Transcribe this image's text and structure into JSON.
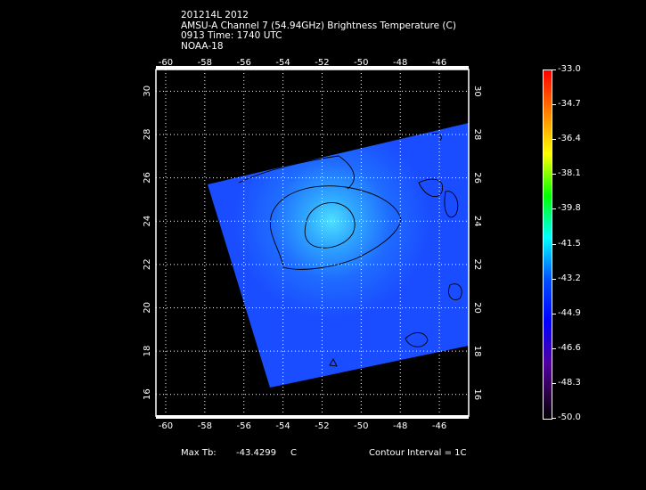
{
  "header": {
    "line1": "201214L 2012",
    "line2": "AMSU-A Channel 7 (54.94GHz) Brightness Temperature (C)",
    "line3": "0913 Time: 1740 UTC",
    "line4": "NOAA-18"
  },
  "map": {
    "x_ticks": [
      -60,
      -58,
      -56,
      -54,
      -52,
      -50,
      -48,
      -46
    ],
    "y_ticks": [
      16,
      18,
      20,
      22,
      24,
      26,
      28,
      30
    ],
    "lon_range": [
      -60.5,
      -44.5
    ],
    "lat_range": [
      15,
      31
    ],
    "swath_color": "#1a4dff",
    "warm_core_color": "#3bd0ff"
  },
  "footer": {
    "max_label": "Max Tb:",
    "max_value": "-43.4299",
    "max_unit": "C",
    "contour": "Contour Interval = 1C"
  },
  "colorbar": {
    "labels": [
      "-33.0",
      "-34.7",
      "-36.4",
      "-38.1",
      "-39.8",
      "-41.5",
      "-43.2",
      "-44.9",
      "-46.6",
      "-48.3",
      "-50.0"
    ]
  }
}
